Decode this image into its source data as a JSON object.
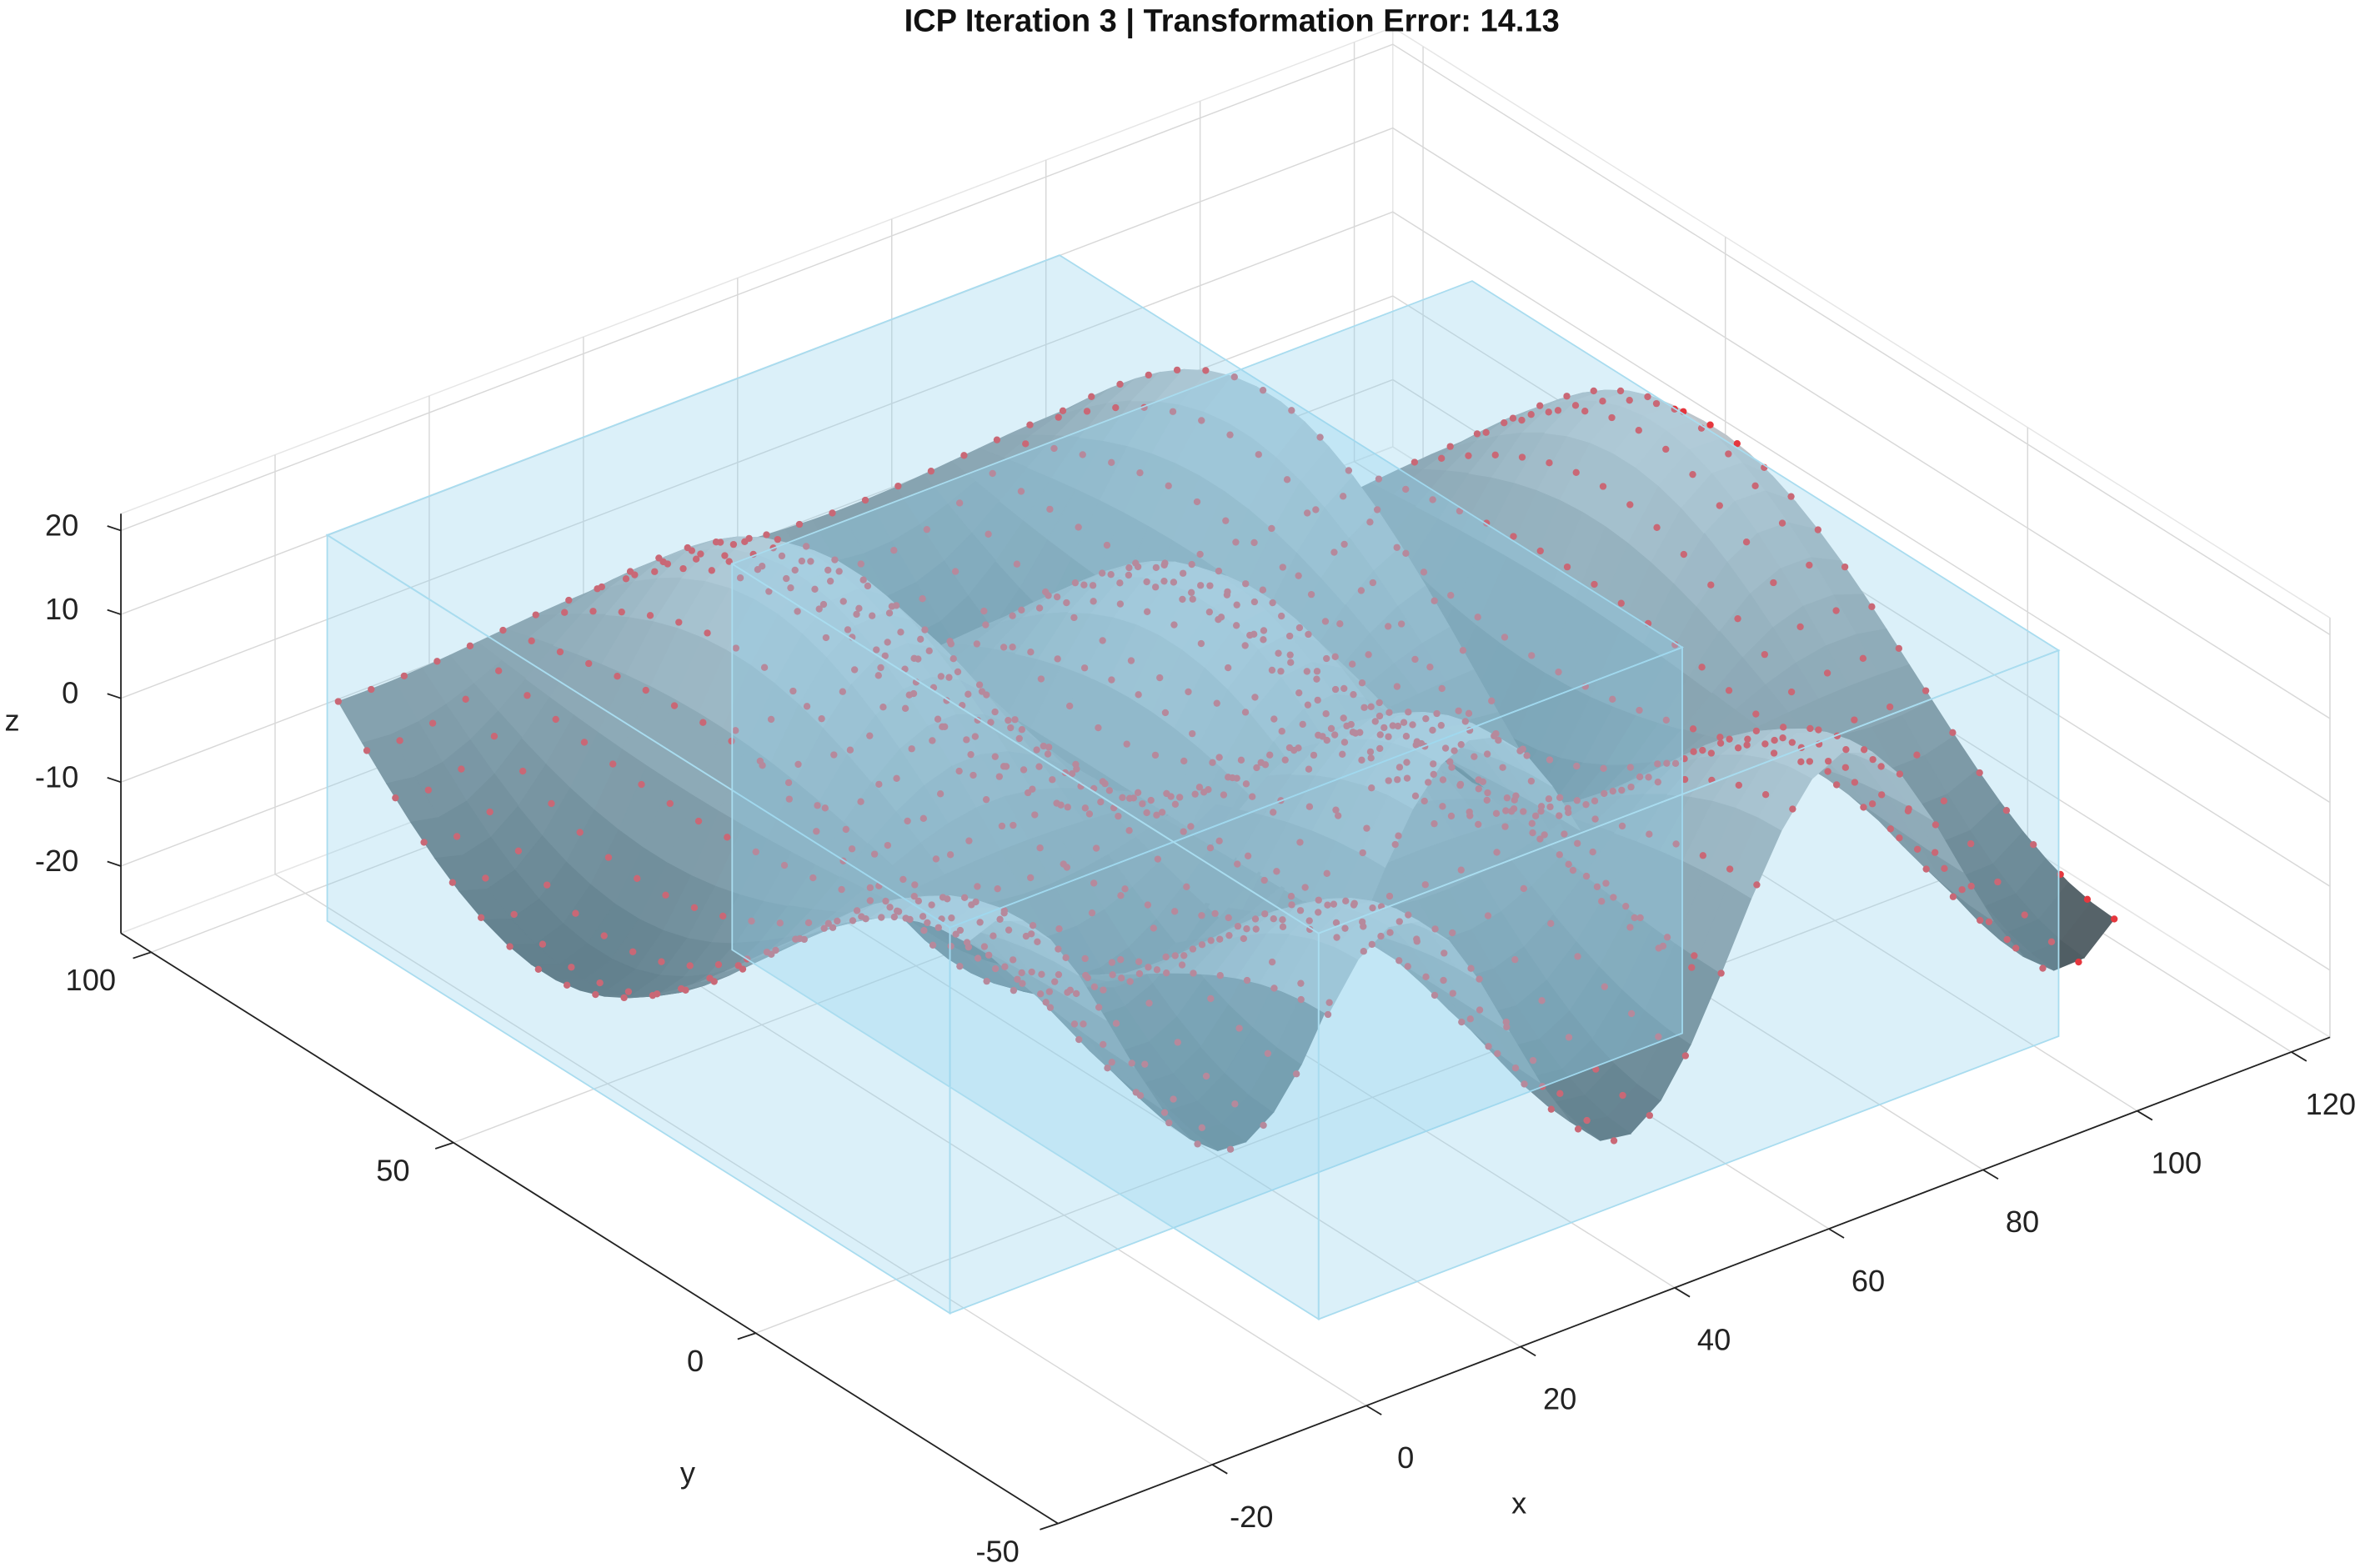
{
  "chart_data": {
    "type": "surface3d",
    "title": "ICP Iteration 3 | Transformation Error: 14.13",
    "xlabel": "x",
    "ylabel": "y",
    "zlabel": "z",
    "xlim": [
      -40,
      125
    ],
    "ylim": [
      -50,
      105
    ],
    "zlim": [
      -28,
      22
    ],
    "xticks": [
      -20,
      0,
      20,
      40,
      60,
      80,
      100,
      120
    ],
    "yticks": [
      -50,
      0,
      50,
      100
    ],
    "zticks": [
      -20,
      -10,
      0,
      10,
      20
    ],
    "grid": true
  }
}
